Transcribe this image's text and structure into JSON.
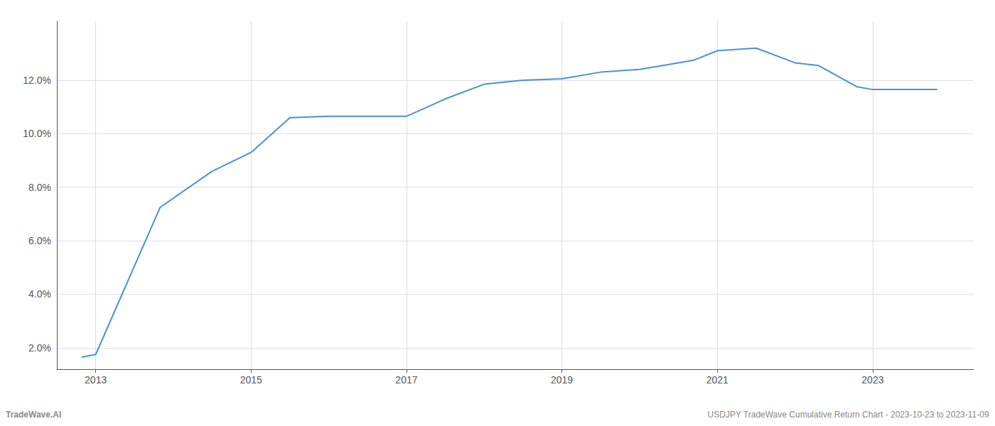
{
  "chart_data": {
    "type": "line",
    "x": [
      2012.82,
      2013.0,
      2013.83,
      2014.5,
      2015.0,
      2015.5,
      2016.0,
      2016.5,
      2017.0,
      2017.5,
      2018.0,
      2018.5,
      2019.0,
      2019.5,
      2020.0,
      2020.3,
      2020.7,
      2021.0,
      2021.5,
      2022.0,
      2022.3,
      2022.8,
      2023.0,
      2023.83
    ],
    "values": [
      1.65,
      1.75,
      7.25,
      8.6,
      9.3,
      10.6,
      10.65,
      10.65,
      10.65,
      11.3,
      11.85,
      12.0,
      12.05,
      12.3,
      12.4,
      12.55,
      12.75,
      13.1,
      13.2,
      12.65,
      12.55,
      11.75,
      11.65,
      11.65
    ],
    "color": "#4A90D9",
    "xlim": [
      2012.5,
      2024.3
    ],
    "xticks": [
      2013,
      2015,
      2017,
      2019,
      2021,
      2023
    ],
    "ylim": [
      1.2,
      14.2
    ],
    "yticks": [
      {
        "value": 2.0,
        "label": "2.0%"
      },
      {
        "value": 4.0,
        "label": "4.0%"
      },
      {
        "value": 6.0,
        "label": "6.0%"
      },
      {
        "value": 8.0,
        "label": "8.0%"
      },
      {
        "value": 10.0,
        "label": "10.0%"
      },
      {
        "value": 12.0,
        "label": "12.0%"
      }
    ],
    "grid": true,
    "annotations": [
      "TradeWave.AI",
      "USDJPY TradeWave Cumulative Return Chart - 2023-10-23 to 2023-11-09"
    ]
  }
}
